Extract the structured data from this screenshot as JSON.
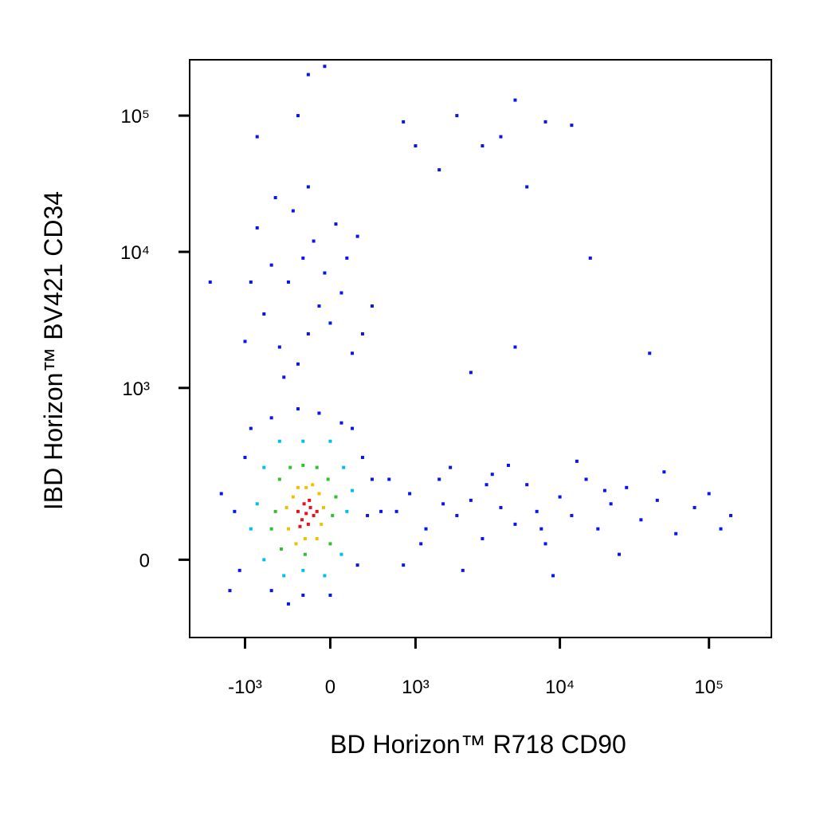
{
  "chart_data": {
    "type": "scatter",
    "x_label": "BD Horizon™ R718 CD90",
    "y_label": "IBD Horizon™ BV421 CD34",
    "xscale": "biexponential",
    "yscale": "biexponential",
    "xlim": [
      -2500,
      262000
    ],
    "ylim": [
      -190,
      257000
    ],
    "xticks": [
      {
        "value": -1000,
        "label": "-10³"
      },
      0,
      {
        "value": 1000,
        "label": "10³"
      },
      {
        "value": 10000,
        "label": "10⁴"
      },
      {
        "value": 100000,
        "label": "10⁵"
      }
    ],
    "yticks": [
      0,
      {
        "value": 1000,
        "label": "10³"
      },
      {
        "value": 10000,
        "label": "10⁴"
      },
      {
        "value": 100000,
        "label": "10⁵"
      }
    ],
    "series": [
      {
        "color": "#0a14f0",
        "x": [
          -1200,
          350,
          -1000,
          300,
          -1100,
          250,
          -300,
          -100,
          -600,
          100,
          -250,
          -600,
          0,
          400,
          -1500,
          500,
          -1300,
          -900,
          200,
          -400,
          -300,
          -200,
          -100,
          -400,
          -250,
          0,
          -500,
          -150,
          100,
          -600,
          -350,
          200,
          -700,
          -50,
          300,
          -800,
          -200,
          50,
          -450,
          150,
          -900,
          -1000,
          400,
          -550,
          250,
          -200,
          -800,
          -300,
          800,
          1500,
          3000,
          5000,
          8000,
          12000,
          2000,
          6000,
          16000,
          40000,
          5000,
          2500,
          1000,
          4000,
          -50,
          -1800,
          700,
          900,
          1200,
          1500,
          2000,
          2500,
          3000,
          3500,
          4000,
          5000,
          6000,
          7000,
          8000,
          10000,
          12000,
          15000,
          18000,
          22000,
          28000,
          35000,
          45000,
          60000,
          80000,
          100000,
          140000,
          800,
          1800,
          2200,
          4500,
          9000,
          13000,
          25000,
          50000,
          120000,
          1100,
          600,
          3200,
          7500,
          20000,
          1600
        ],
        "y": [
          100,
          90,
          300,
          300,
          -20,
          -10,
          700,
          650,
          600,
          550,
          -70,
          -60,
          -70,
          200,
          150,
          100,
          -60,
          500,
          500,
          -90,
          1500,
          2500,
          4000,
          6000,
          9000,
          3000,
          2000,
          12000,
          5000,
          8000,
          20000,
          1800,
          3500,
          7000,
          2500,
          15000,
          30000,
          16000,
          1200,
          9000,
          6000,
          2200,
          4000,
          25000,
          13000,
          200000,
          70000,
          100000,
          90000,
          40000,
          60000,
          130000,
          90000,
          85000,
          100000,
          30000,
          9000,
          1800,
          2000,
          1300,
          60000,
          70000,
          230000,
          6000,
          100,
          150,
          60,
          200,
          90,
          130,
          40,
          220,
          110,
          70,
          180,
          100,
          30,
          140,
          90,
          200,
          60,
          120,
          170,
          80,
          130,
          50,
          110,
          150,
          90,
          -10,
          250,
          -20,
          260,
          -30,
          280,
          10,
          230,
          60,
          30,
          200,
          180,
          60,
          160,
          120
        ]
      },
      {
        "color": "#00c0e8",
        "x": [
          -800,
          150,
          -250,
          -250,
          -700,
          120,
          -700,
          100,
          -500,
          0,
          -900,
          200,
          -450,
          -50
        ],
        "y": [
          120,
          100,
          400,
          -20,
          250,
          250,
          0,
          10,
          400,
          400,
          60,
          160,
          -30,
          -30
        ]
      },
      {
        "color": "#30c030",
        "x": [
          -550,
          20,
          -250,
          -230,
          -500,
          -20,
          -480,
          0,
          -380,
          -120,
          -600,
          50
        ],
        "y": [
          100,
          90,
          260,
          10,
          200,
          200,
          20,
          30,
          250,
          250,
          60,
          140
        ]
      },
      {
        "color": "#f0c000",
        "x": [
          -350,
          -100,
          -400,
          -80,
          -220,
          -230,
          -320,
          -120,
          -60,
          -420,
          -160,
          -300
        ],
        "y": [
          140,
          150,
          60,
          70,
          170,
          40,
          30,
          40,
          110,
          110,
          180,
          170
        ]
      },
      {
        "color": "#e8101a",
        "x": [
          -220,
          -180,
          -260,
          -150,
          -300,
          -200,
          -240,
          -120,
          -280,
          -190
        ],
        "y": [
          95,
          110,
          80,
          90,
          100,
          70,
          120,
          100,
          65,
          130
        ]
      }
    ]
  }
}
